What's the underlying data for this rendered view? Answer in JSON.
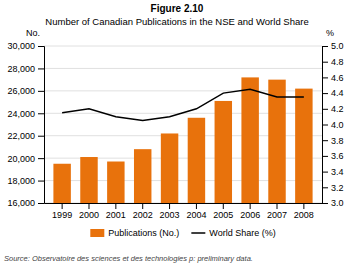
{
  "chart_data": {
    "type": "bar",
    "title": "Figure 2.10",
    "subtitle": "Number of Canadian Publications in the NSE and World Share",
    "categories": [
      "1999",
      "2000",
      "2001",
      "2002",
      "2003",
      "2004",
      "2005",
      "2006",
      "2007",
      "2008"
    ],
    "series": [
      {
        "name": "Publications (No.)",
        "type": "bar",
        "color": "#E8720C",
        "values": [
          19500,
          20100,
          19700,
          20800,
          22200,
          23600,
          25100,
          27200,
          27000,
          26200
        ]
      },
      {
        "name": "World Share (%)",
        "type": "line",
        "color": "#000000",
        "axis": "y2",
        "values": [
          4.15,
          4.2,
          4.1,
          4.05,
          4.1,
          4.2,
          4.4,
          4.45,
          4.35,
          4.35
        ]
      }
    ],
    "ylabel": "No.",
    "y2label": "%",
    "ylim": [
      16000,
      30000
    ],
    "yticks": [
      {
        "value": 16000,
        "label": "16,000"
      },
      {
        "value": 18000,
        "label": "18,000"
      },
      {
        "value": 20000,
        "label": "20,000"
      },
      {
        "value": 22000,
        "label": "22,000"
      },
      {
        "value": 24000,
        "label": "24,000"
      },
      {
        "value": 26000,
        "label": "26,000"
      },
      {
        "value": 28000,
        "label": "28,000"
      },
      {
        "value": 30000,
        "label": "30,000"
      }
    ],
    "y2lim": [
      3.0,
      5.0
    ],
    "y2ticks": [
      {
        "value": 3.0,
        "label": "3.0"
      },
      3.2,
      3.4,
      3.6,
      3.8,
      {
        "value": 4.0,
        "label": "4.0"
      },
      4.2,
      4.4,
      4.6,
      4.8,
      {
        "value": 5.0,
        "label": "5.0"
      }
    ],
    "grid": true,
    "legend": "bottom",
    "annotations": [
      "Source: Observatoire des sciences et des technologies  p: preliminary data."
    ]
  }
}
